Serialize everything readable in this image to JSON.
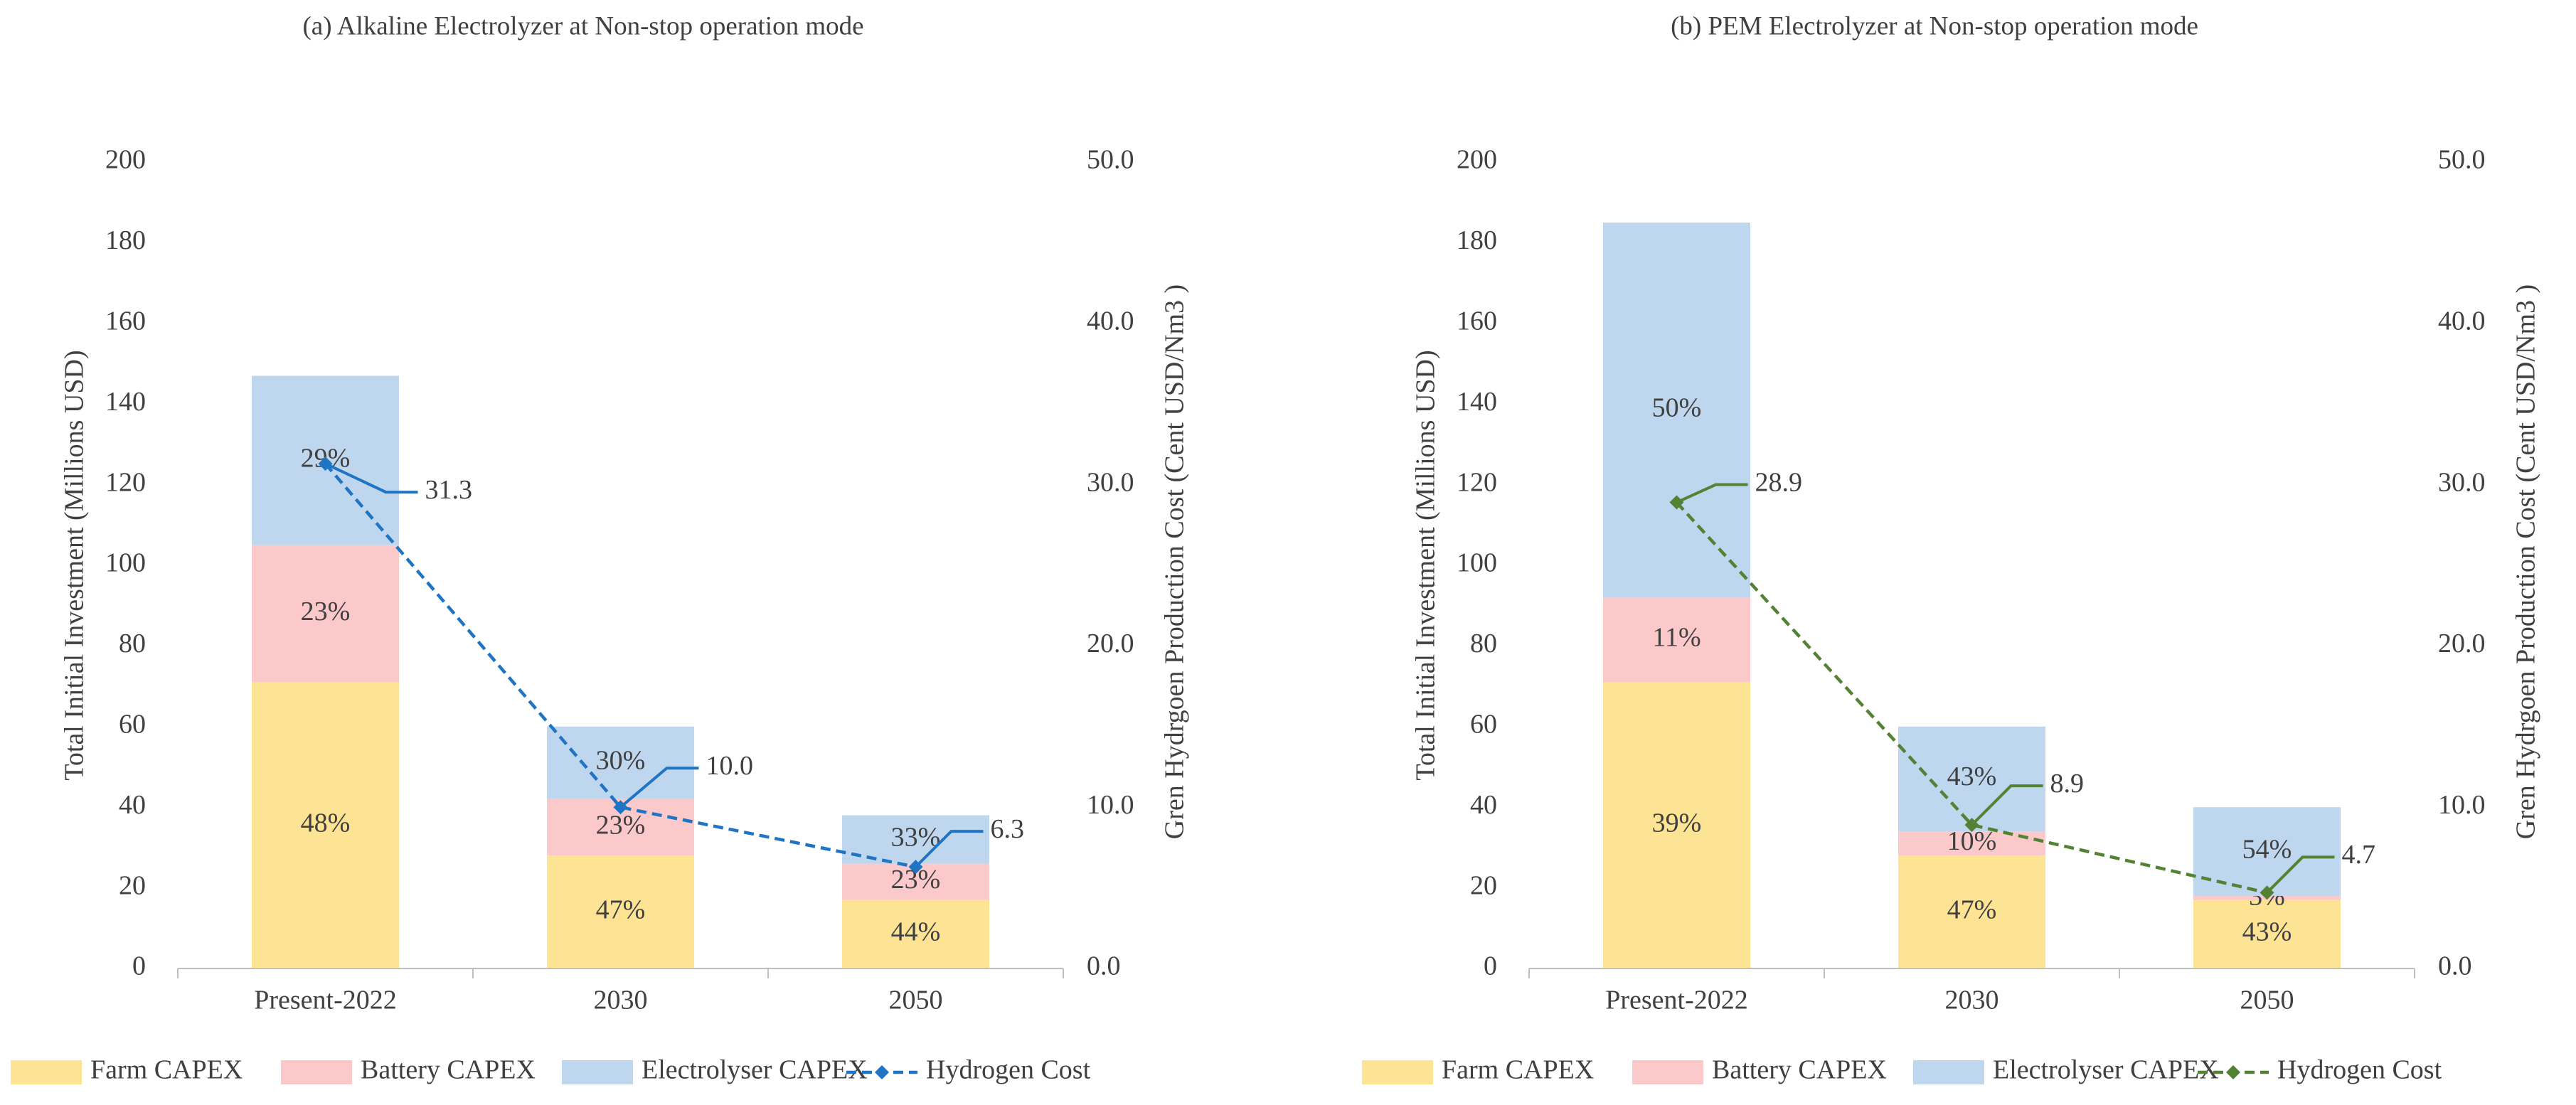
{
  "chart_data": [
    {
      "type": "bar",
      "stacked": true,
      "title": "(a) Alkaline Electrolyzer at Non-stop operation mode",
      "categories": [
        "Present-2022",
        "2030",
        "2050"
      ],
      "ylabel": "Total Initial Investment (Millions USD)",
      "y2label": "Gren Hydrgoen  Production Cost (Cent USD/Nm3 )",
      "ylim": [
        0,
        200
      ],
      "y2lim": [
        0,
        50
      ],
      "yticks": [
        "0",
        "20",
        "40",
        "60",
        "80",
        "100",
        "120",
        "140",
        "160",
        "180",
        "200"
      ],
      "y2ticks": [
        "0.0",
        "10.0",
        "20.0",
        "30.0",
        "40.0",
        "50.0"
      ],
      "series": [
        {
          "name": "Farm CAPEX",
          "color": "#FDE394",
          "values": [
            71,
            28,
            17
          ],
          "labels": [
            "48%",
            "47%",
            "44%"
          ]
        },
        {
          "name": "Battery CAPEX",
          "color": "#FCC9CB",
          "values": [
            34,
            14,
            9
          ],
          "labels": [
            "23%",
            "23%",
            "23%"
          ]
        },
        {
          "name": "Electrolyser CAPEX",
          "color": "#BED6EE",
          "values": [
            42,
            18,
            12
          ],
          "labels": [
            "29%",
            "30%",
            "33%"
          ]
        }
      ],
      "line": {
        "name": "Hydrogen Cost",
        "color": "#1F74C4",
        "values": [
          31.3,
          10.0,
          6.3
        ],
        "labels": [
          "31.3",
          "10.0",
          "6.3"
        ]
      },
      "legend": "bottom"
    },
    {
      "type": "bar",
      "stacked": true,
      "title": "(b) PEM Electrolyzer at Non-stop operation mode",
      "categories": [
        "Present-2022",
        "2030",
        "2050"
      ],
      "ylabel": "Total Initial Investment (Millions USD)",
      "y2label": "Gren Hydrgoen  Production Cost (Cent USD/Nm3 )",
      "ylim": [
        0,
        200
      ],
      "y2lim": [
        0,
        50
      ],
      "yticks": [
        "0",
        "20",
        "40",
        "60",
        "80",
        "100",
        "120",
        "140",
        "160",
        "180",
        "200"
      ],
      "y2ticks": [
        "0.0",
        "10.0",
        "20.0",
        "30.0",
        "40.0",
        "50.0"
      ],
      "series": [
        {
          "name": "Farm CAPEX",
          "color": "#FDE394",
          "values": [
            71,
            28,
            17
          ],
          "labels": [
            "39%",
            "47%",
            "43%"
          ]
        },
        {
          "name": "Battery CAPEX",
          "color": "#FCC9CB",
          "values": [
            21,
            6,
            1
          ],
          "labels": [
            "11%",
            "10%",
            "3%"
          ]
        },
        {
          "name": "Electrolyser CAPEX",
          "color": "#BED6EE",
          "values": [
            93,
            26,
            22
          ],
          "labels": [
            "50%",
            "43%",
            "54%"
          ]
        }
      ],
      "line": {
        "name": "Hydrogen Cost",
        "color": "#548235",
        "values": [
          28.9,
          8.9,
          4.7
        ],
        "labels": [
          "28.9",
          "8.9",
          "4.7"
        ]
      },
      "legend": "bottom"
    }
  ]
}
